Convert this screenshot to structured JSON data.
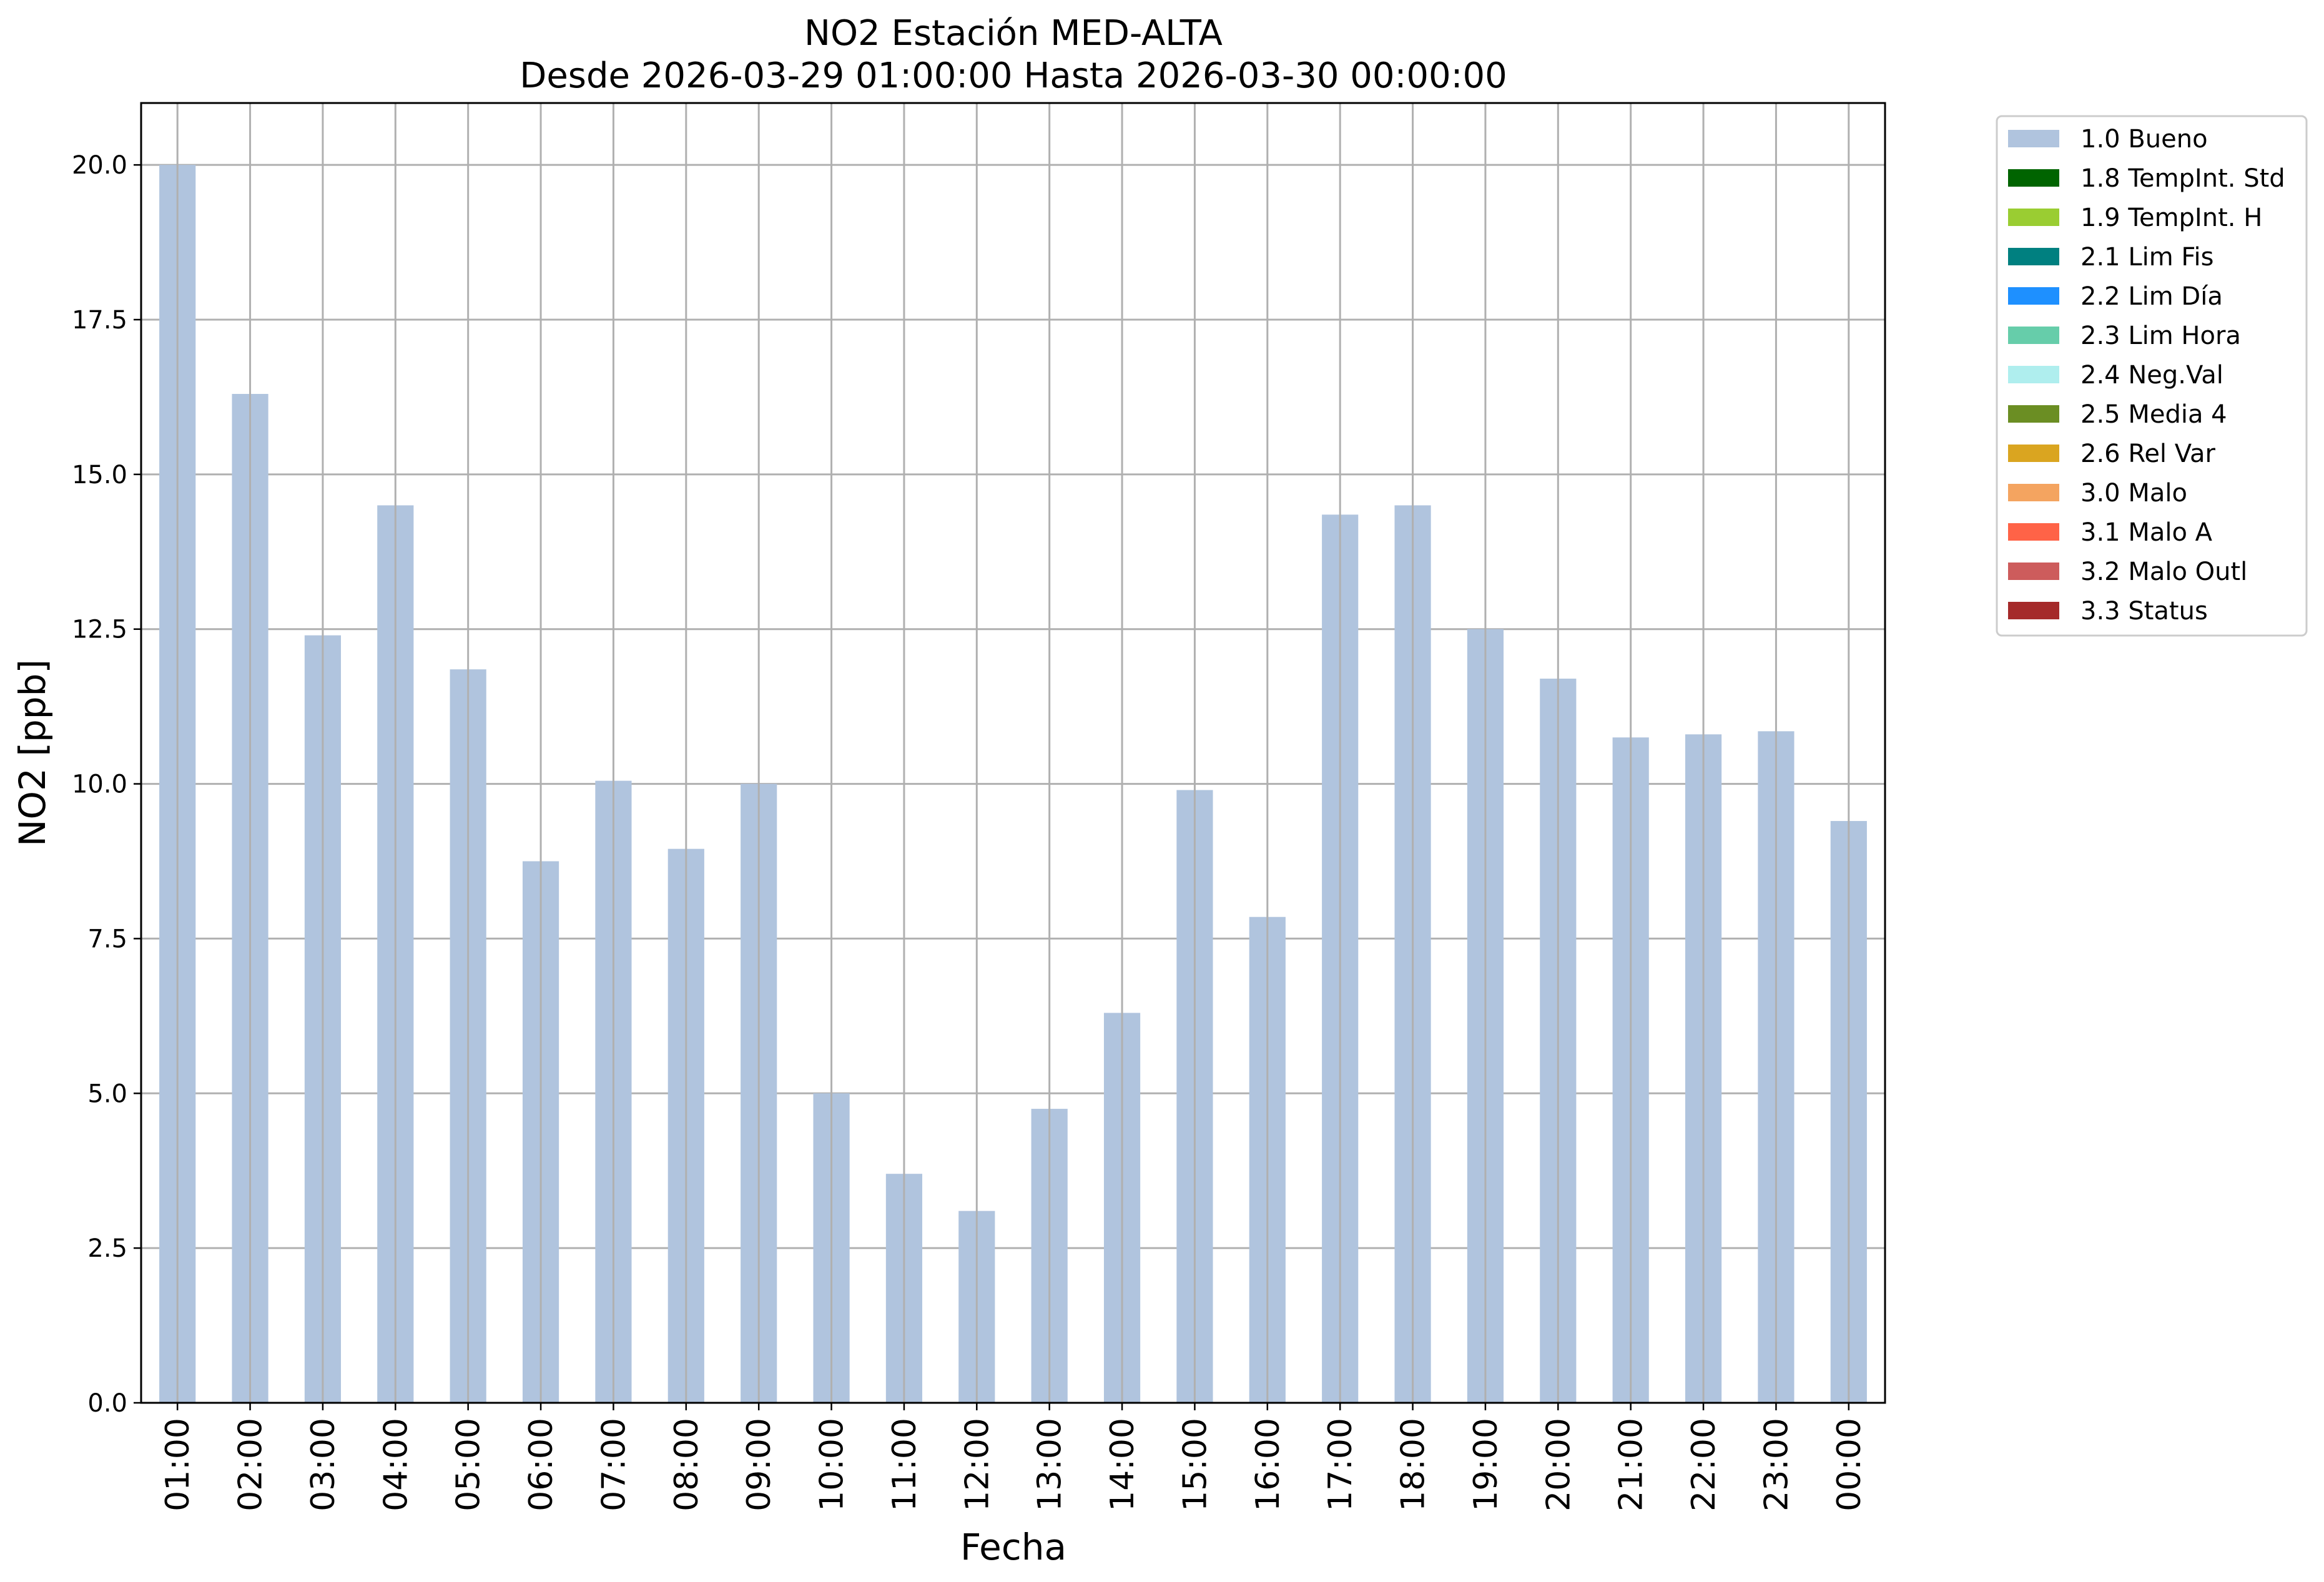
{
  "chart_data": {
    "type": "bar",
    "title": "NO2 Estación MED-ALTA",
    "subtitle": "Desde 2026-03-29 01:00:00 Hasta 2026-03-30 00:00:00",
    "xlabel": "Fecha",
    "ylabel": "NO2 [ppb]",
    "ylim": [
      0,
      21
    ],
    "yticks": [
      "0.0",
      "2.5",
      "5.0",
      "7.5",
      "10.0",
      "12.5",
      "15.0",
      "17.5",
      "20.0"
    ],
    "grid": true,
    "legend_position": "outside right, top",
    "categories": [
      "01:00",
      "02:00",
      "03:00",
      "04:00",
      "05:00",
      "06:00",
      "07:00",
      "08:00",
      "09:00",
      "10:00",
      "11:00",
      "12:00",
      "13:00",
      "14:00",
      "15:00",
      "16:00",
      "17:00",
      "18:00",
      "19:00",
      "20:00",
      "21:00",
      "22:00",
      "23:00",
      "00:00"
    ],
    "series": [
      {
        "name": "1.0 Bueno",
        "color": "#b0c4de",
        "values": [
          20.0,
          16.3,
          12.4,
          14.5,
          11.85,
          8.75,
          10.05,
          8.95,
          10.0,
          5.0,
          3.7,
          3.1,
          4.75,
          6.3,
          9.9,
          7.85,
          14.35,
          14.5,
          12.5,
          11.7,
          10.75,
          10.8,
          10.85,
          9.4
        ]
      }
    ],
    "legend": [
      {
        "label": "1.0 Bueno",
        "color": "#b0c4de"
      },
      {
        "label": "1.8 TempInt. Std",
        "color": "#006400"
      },
      {
        "label": "1.9 TempInt. H",
        "color": "#9acd32"
      },
      {
        "label": "2.1 Lim Fis",
        "color": "#008080"
      },
      {
        "label": "2.2 Lim Día",
        "color": "#1e90ff"
      },
      {
        "label": "2.3 Lim Hora",
        "color": "#66cdaa"
      },
      {
        "label": "2.4 Neg.Val",
        "color": "#afeeee"
      },
      {
        "label": "2.5 Media 4",
        "color": "#6b8e23"
      },
      {
        "label": "2.6 Rel Var",
        "color": "#daa520"
      },
      {
        "label": "3.0 Malo",
        "color": "#f4a460"
      },
      {
        "label": "3.1 Malo A",
        "color": "#ff6347"
      },
      {
        "label": "3.2 Malo Outl",
        "color": "#cd5c5c"
      },
      {
        "label": "3.3 Status",
        "color": "#a52a2a"
      }
    ]
  }
}
